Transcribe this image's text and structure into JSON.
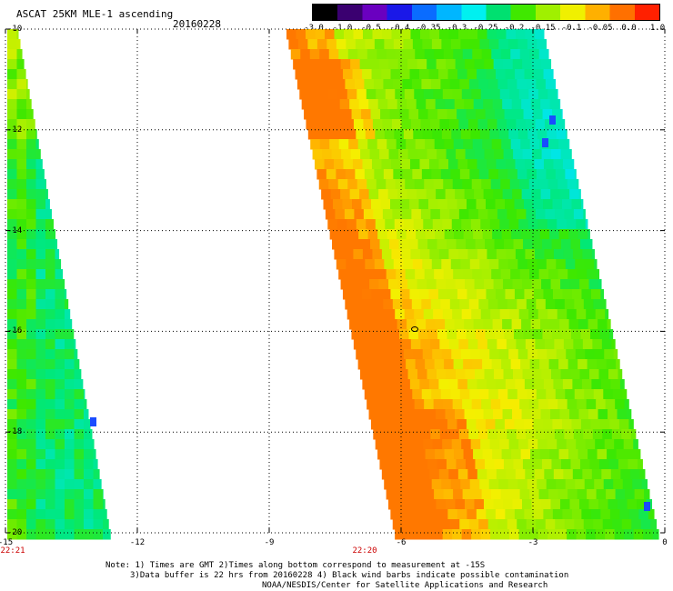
{
  "title": "ASCAT 25KM MLE-1 ascending",
  "date": "20160228",
  "colorbar": {
    "labels": [
      "-3.0",
      "-1.0",
      "-0.5",
      "-0.4",
      "-0.35",
      "-0.3",
      "-0.25",
      "-0.2",
      "-0.15",
      "-0.1",
      "-0.05",
      "0.0",
      "1.0"
    ],
    "colors": [
      "#000000",
      "#3a0070",
      "#6a00c0",
      "#1a18e8",
      "#0a6cff",
      "#00b6ff",
      "#00f0f0",
      "#00e070",
      "#40e800",
      "#a0f000",
      "#f0f000",
      "#ffb000",
      "#ff7000",
      "#ff2000"
    ]
  },
  "axes": {
    "x_ticks": [
      -15,
      -12,
      -9,
      -6,
      -3,
      0
    ],
    "x_tick_labels": [
      "-15",
      "-12",
      "-9",
      "-6",
      "-3",
      "0"
    ],
    "y_ticks": [
      -10,
      -12,
      -14,
      -16,
      -18,
      -20
    ],
    "y_tick_labels": [
      "-10",
      "-12",
      "-14",
      "-16",
      "-18",
      "-20"
    ],
    "xlim": [
      -15,
      0
    ],
    "ylim": [
      -20,
      -10
    ]
  },
  "time_labels": [
    {
      "lon": -15,
      "text": "22:21"
    },
    {
      "lon": -6,
      "text": "22:20"
    }
  ],
  "notes": {
    "line1": "Note: 1) Times are GMT 2)Times along bottom correspond to measurement at -15S",
    "line2": "3)Data buffer is 22 hrs from 20160228 4) Black wind barbs indicate possible contamination",
    "line3": "NOAA/NESDIS/Center for Satellite Applications and Research"
  }
}
